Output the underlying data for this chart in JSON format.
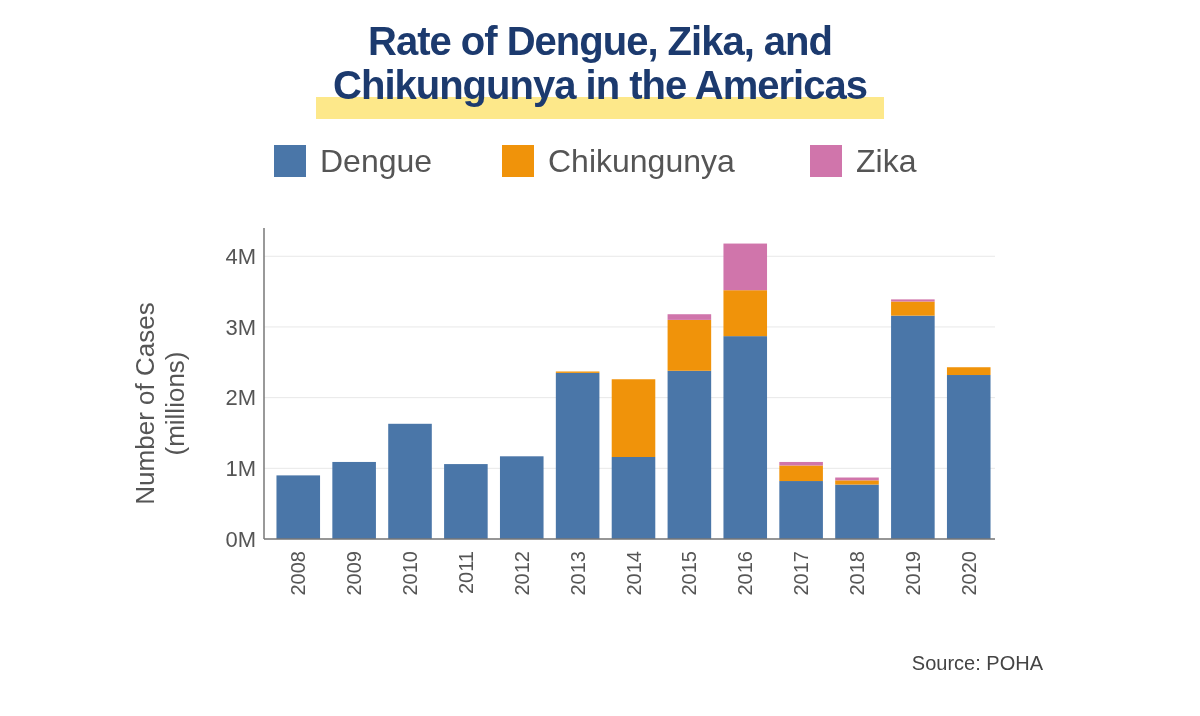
{
  "chart_data": {
    "type": "bar",
    "title": "Rate of Dengue, Zika, and Chikungunya in the Americas",
    "ylabel": "Number of Cases (millions)",
    "categories": [
      "2008",
      "2009",
      "2010",
      "2011",
      "2012",
      "2013",
      "2014",
      "2015",
      "2016",
      "2017",
      "2018",
      "2019",
      "2020"
    ],
    "series": [
      {
        "name": "Dengue",
        "color": "#4a76a8",
        "values": [
          0.9,
          1.09,
          1.63,
          1.06,
          1.17,
          2.35,
          1.16,
          2.38,
          2.87,
          0.82,
          0.77,
          3.16,
          2.32
        ]
      },
      {
        "name": "Chikungunya",
        "color": "#f0930a",
        "values": [
          0,
          0,
          0,
          0,
          0,
          0.02,
          1.1,
          0.72,
          0.65,
          0.22,
          0.06,
          0.2,
          0.11
        ]
      },
      {
        "name": "Zika",
        "color": "#d075ab",
        "values": [
          0,
          0,
          0,
          0,
          0,
          0,
          0,
          0.08,
          0.66,
          0.05,
          0.04,
          0.03,
          0
        ]
      }
    ],
    "stacked": true,
    "ylim": [
      0,
      4.4
    ],
    "yticks": [
      {
        "value": 0,
        "label": "0M"
      },
      {
        "value": 1,
        "label": "1M"
      },
      {
        "value": 2,
        "label": "2M"
      },
      {
        "value": 3,
        "label": "3M"
      },
      {
        "value": 4,
        "label": "4M"
      }
    ],
    "grid": "y",
    "legend": "top",
    "annotations": [
      "Source: POHA"
    ]
  }
}
